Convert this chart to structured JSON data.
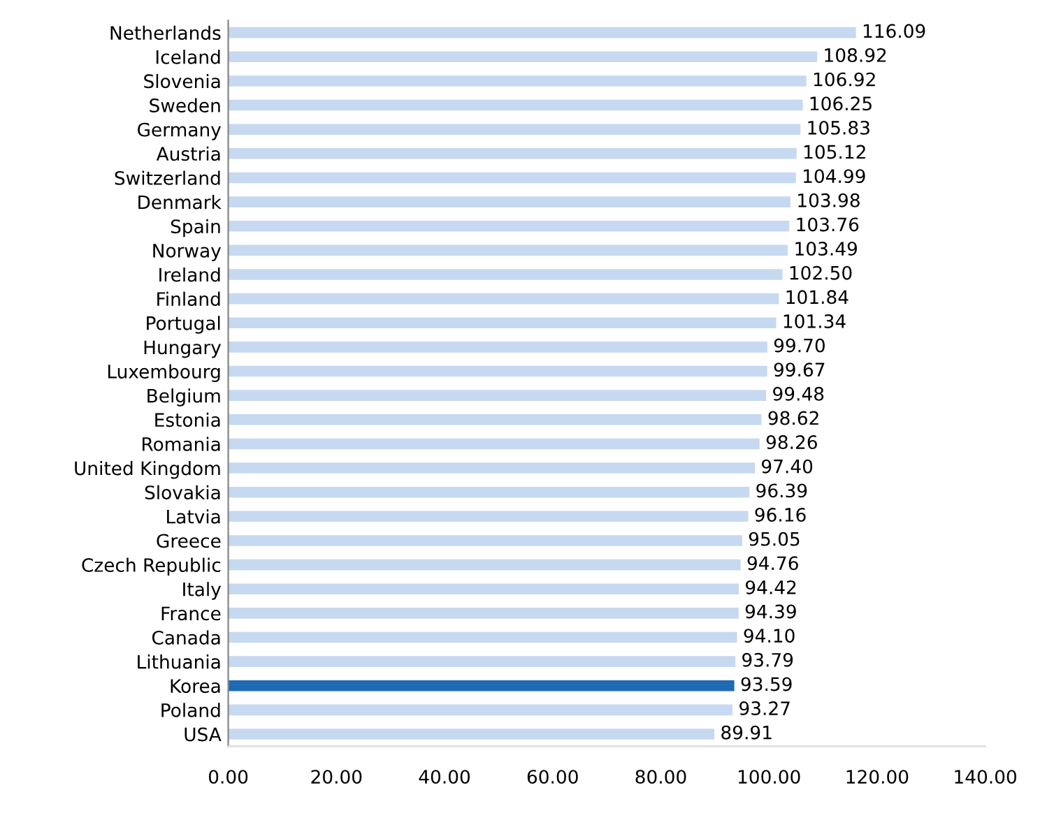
{
  "chart_data": {
    "type": "bar",
    "orientation": "horizontal",
    "categories": [
      "Netherlands",
      "Iceland",
      "Slovenia",
      "Sweden",
      "Germany",
      "Austria",
      "Switzerland",
      "Denmark",
      "Spain",
      "Norway",
      "Ireland",
      "Finland",
      "Portugal",
      "Hungary",
      "Luxembourg",
      "Belgium",
      "Estonia",
      "Romania",
      "United Kingdom",
      "Slovakia",
      "Latvia",
      "Greece",
      "Czech Republic",
      "Italy",
      "France",
      "Canada",
      "Lithuania",
      "Korea",
      "Poland",
      "USA"
    ],
    "values": [
      116.09,
      108.92,
      106.92,
      106.25,
      105.83,
      105.12,
      104.99,
      103.98,
      103.76,
      103.49,
      102.5,
      101.84,
      101.34,
      99.7,
      99.67,
      99.48,
      98.62,
      98.26,
      97.4,
      96.39,
      96.16,
      95.05,
      94.76,
      94.42,
      94.39,
      94.1,
      93.79,
      93.59,
      93.27,
      89.91
    ],
    "value_labels": [
      "116.09",
      "108.92",
      "106.92",
      "106.25",
      "105.83",
      "105.12",
      "104.99",
      "103.98",
      "103.76",
      "103.49",
      "102.50",
      "101.84",
      "101.34",
      "99.70",
      "99.67",
      "99.48",
      "98.62",
      "98.26",
      "97.40",
      "96.39",
      "96.16",
      "95.05",
      "94.76",
      "94.42",
      "94.39",
      "94.10",
      "93.79",
      "93.59",
      "93.27",
      "89.91"
    ],
    "colors": [
      "#c6d9f1",
      "#c6d9f1",
      "#c6d9f1",
      "#c6d9f1",
      "#c6d9f1",
      "#c6d9f1",
      "#c6d9f1",
      "#c6d9f1",
      "#c6d9f1",
      "#c6d9f1",
      "#c6d9f1",
      "#c6d9f1",
      "#c6d9f1",
      "#c6d9f1",
      "#c6d9f1",
      "#c6d9f1",
      "#c6d9f1",
      "#c6d9f1",
      "#c6d9f1",
      "#c6d9f1",
      "#c6d9f1",
      "#c6d9f1",
      "#c6d9f1",
      "#c6d9f1",
      "#c6d9f1",
      "#c6d9f1",
      "#c6d9f1",
      "#1f6ab4",
      "#c6d9f1",
      "#c6d9f1"
    ],
    "xlim": [
      0,
      140
    ],
    "xticks": [
      {
        "value": 0,
        "label": "0.00"
      },
      {
        "value": 20,
        "label": "20.00"
      },
      {
        "value": 40,
        "label": "40.00"
      },
      {
        "value": 60,
        "label": "60.00"
      },
      {
        "value": 80,
        "label": "80.00"
      },
      {
        "value": 100,
        "label": "100.00"
      },
      {
        "value": 120,
        "label": "120.00"
      },
      {
        "value": 140,
        "label": "140.00"
      }
    ],
    "grid": false,
    "legend": false
  }
}
